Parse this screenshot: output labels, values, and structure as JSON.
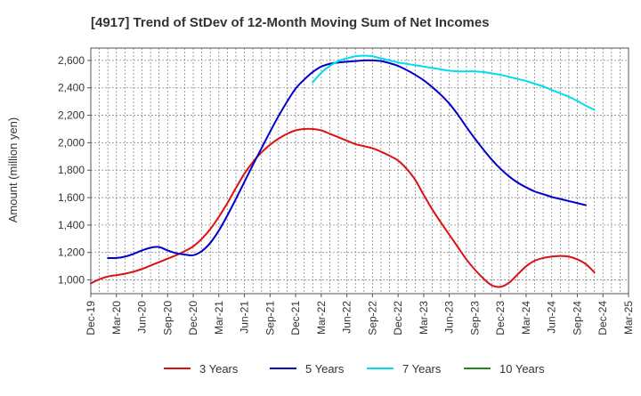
{
  "chart_data": {
    "type": "line",
    "title": "[4917]  Trend of StDev of 12-Month Moving Sum of Net Incomes",
    "xlabel": "",
    "ylabel": "Amount (million yen)",
    "ylim": [
      900,
      2690
    ],
    "y_ticks": [
      1000,
      1200,
      1400,
      1600,
      1800,
      2000,
      2200,
      2400,
      2600
    ],
    "y_tick_labels": [
      "1,000",
      "1,200",
      "1,400",
      "1,600",
      "1,800",
      "2,000",
      "2,200",
      "2,400",
      "2,600"
    ],
    "x_ticks": [
      "Dec-19",
      "Mar-20",
      "Jun-20",
      "Sep-20",
      "Dec-20",
      "Mar-21",
      "Jun-21",
      "Sep-21",
      "Dec-21",
      "Mar-22",
      "Jun-22",
      "Sep-22",
      "Dec-22",
      "Mar-23",
      "Jun-23",
      "Sep-23",
      "Dec-23",
      "Mar-24",
      "Jun-24",
      "Sep-24",
      "Dec-24",
      "Mar-25"
    ],
    "grid": true,
    "legend_position": "bottom",
    "series": [
      {
        "name": "3 Years",
        "color": "#dd1111",
        "points": [
          [
            "Dec-19",
            975
          ],
          [
            "Jan-20",
            1005
          ],
          [
            "Feb-20",
            1025
          ],
          [
            "Mar-20",
            1035
          ],
          [
            "Apr-20",
            1045
          ],
          [
            "May-20",
            1060
          ],
          [
            "Jun-20",
            1080
          ],
          [
            "Jul-20",
            1105
          ],
          [
            "Aug-20",
            1130
          ],
          [
            "Sep-20",
            1155
          ],
          [
            "Oct-20",
            1180
          ],
          [
            "Nov-20",
            1210
          ],
          [
            "Dec-20",
            1245
          ],
          [
            "Jan-21",
            1300
          ],
          [
            "Feb-21",
            1370
          ],
          [
            "Mar-21",
            1460
          ],
          [
            "Apr-21",
            1560
          ],
          [
            "May-21",
            1670
          ],
          [
            "Jun-21",
            1775
          ],
          [
            "Jul-21",
            1860
          ],
          [
            "Aug-21",
            1930
          ],
          [
            "Sep-21",
            1985
          ],
          [
            "Oct-21",
            2030
          ],
          [
            "Nov-21",
            2065
          ],
          [
            "Dec-21",
            2090
          ],
          [
            "Jan-22",
            2100
          ],
          [
            "Feb-22",
            2100
          ],
          [
            "Mar-22",
            2090
          ],
          [
            "Apr-22",
            2065
          ],
          [
            "May-22",
            2040
          ],
          [
            "Jun-22",
            2015
          ],
          [
            "Jul-22",
            1990
          ],
          [
            "Aug-22",
            1975
          ],
          [
            "Sep-22",
            1960
          ],
          [
            "Oct-22",
            1935
          ],
          [
            "Nov-22",
            1905
          ],
          [
            "Dec-22",
            1870
          ],
          [
            "Jan-23",
            1810
          ],
          [
            "Feb-23",
            1730
          ],
          [
            "Mar-23",
            1620
          ],
          [
            "Apr-23",
            1515
          ],
          [
            "May-23",
            1420
          ],
          [
            "Jun-23",
            1330
          ],
          [
            "Jul-23",
            1240
          ],
          [
            "Aug-23",
            1150
          ],
          [
            "Sep-23",
            1075
          ],
          [
            "Oct-23",
            1010
          ],
          [
            "Nov-23",
            960
          ],
          [
            "Dec-23",
            950
          ],
          [
            "Jan-24",
            980
          ],
          [
            "Feb-24",
            1040
          ],
          [
            "Mar-24",
            1100
          ],
          [
            "Apr-24",
            1140
          ],
          [
            "May-24",
            1160
          ],
          [
            "Jun-24",
            1170
          ],
          [
            "Jul-24",
            1175
          ],
          [
            "Aug-24",
            1170
          ],
          [
            "Sep-24",
            1150
          ],
          [
            "Oct-24",
            1115
          ],
          [
            "Nov-24",
            1055
          ]
        ]
      },
      {
        "name": "5 Years",
        "color": "#0000cc",
        "points": [
          [
            "Feb-20",
            1160
          ],
          [
            "Mar-20",
            1160
          ],
          [
            "Apr-20",
            1170
          ],
          [
            "May-20",
            1190
          ],
          [
            "Jun-20",
            1215
          ],
          [
            "Jul-20",
            1235
          ],
          [
            "Aug-20",
            1240
          ],
          [
            "Sep-20",
            1215
          ],
          [
            "Oct-20",
            1195
          ],
          [
            "Nov-20",
            1185
          ],
          [
            "Dec-20",
            1180
          ],
          [
            "Jan-21",
            1210
          ],
          [
            "Feb-21",
            1270
          ],
          [
            "Mar-21",
            1360
          ],
          [
            "Apr-21",
            1470
          ],
          [
            "May-21",
            1590
          ],
          [
            "Jun-21",
            1715
          ],
          [
            "Jul-21",
            1840
          ],
          [
            "Aug-21",
            1960
          ],
          [
            "Sep-21",
            2080
          ],
          [
            "Oct-21",
            2195
          ],
          [
            "Nov-21",
            2300
          ],
          [
            "Dec-21",
            2395
          ],
          [
            "Jan-22",
            2460
          ],
          [
            "Feb-22",
            2515
          ],
          [
            "Mar-22",
            2555
          ],
          [
            "Apr-22",
            2575
          ],
          [
            "May-22",
            2585
          ],
          [
            "Jun-22",
            2590
          ],
          [
            "Jul-22",
            2595
          ],
          [
            "Aug-22",
            2600
          ],
          [
            "Sep-22",
            2600
          ],
          [
            "Oct-22",
            2595
          ],
          [
            "Nov-22",
            2580
          ],
          [
            "Dec-22",
            2560
          ],
          [
            "Jan-23",
            2530
          ],
          [
            "Feb-23",
            2495
          ],
          [
            "Mar-23",
            2455
          ],
          [
            "Apr-23",
            2405
          ],
          [
            "May-23",
            2350
          ],
          [
            "Jun-23",
            2285
          ],
          [
            "Jul-23",
            2205
          ],
          [
            "Aug-23",
            2115
          ],
          [
            "Sep-23",
            2030
          ],
          [
            "Oct-23",
            1950
          ],
          [
            "Nov-23",
            1875
          ],
          [
            "Dec-23",
            1810
          ],
          [
            "Jan-24",
            1755
          ],
          [
            "Feb-24",
            1710
          ],
          [
            "Mar-24",
            1675
          ],
          [
            "Apr-24",
            1645
          ],
          [
            "May-24",
            1625
          ],
          [
            "Jun-24",
            1605
          ],
          [
            "Jul-24",
            1590
          ],
          [
            "Aug-24",
            1575
          ],
          [
            "Sep-24",
            1560
          ],
          [
            "Oct-24",
            1545
          ]
        ]
      },
      {
        "name": "7 Years",
        "color": "#00ddee",
        "points": [
          [
            "Feb-22",
            2440
          ],
          [
            "Mar-22",
            2510
          ],
          [
            "Apr-22",
            2560
          ],
          [
            "May-22",
            2595
          ],
          [
            "Jun-22",
            2615
          ],
          [
            "Jul-22",
            2630
          ],
          [
            "Aug-22",
            2635
          ],
          [
            "Sep-22",
            2630
          ],
          [
            "Oct-22",
            2615
          ],
          [
            "Nov-22",
            2600
          ],
          [
            "Dec-22",
            2585
          ],
          [
            "Jan-23",
            2575
          ],
          [
            "Feb-23",
            2565
          ],
          [
            "Mar-23",
            2555
          ],
          [
            "Apr-23",
            2545
          ],
          [
            "May-23",
            2535
          ],
          [
            "Jun-23",
            2525
          ],
          [
            "Jul-23",
            2520
          ],
          [
            "Aug-23",
            2520
          ],
          [
            "Sep-23",
            2520
          ],
          [
            "Oct-23",
            2515
          ],
          [
            "Nov-23",
            2505
          ],
          [
            "Dec-23",
            2495
          ],
          [
            "Jan-24",
            2480
          ],
          [
            "Feb-24",
            2465
          ],
          [
            "Mar-24",
            2450
          ],
          [
            "Apr-24",
            2430
          ],
          [
            "May-24",
            2410
          ],
          [
            "Jun-24",
            2385
          ],
          [
            "Jul-24",
            2360
          ],
          [
            "Aug-24",
            2335
          ],
          [
            "Sep-24",
            2305
          ],
          [
            "Oct-24",
            2270
          ],
          [
            "Nov-24",
            2240
          ]
        ]
      },
      {
        "name": "10 Years",
        "color": "#228822",
        "points": []
      }
    ]
  }
}
